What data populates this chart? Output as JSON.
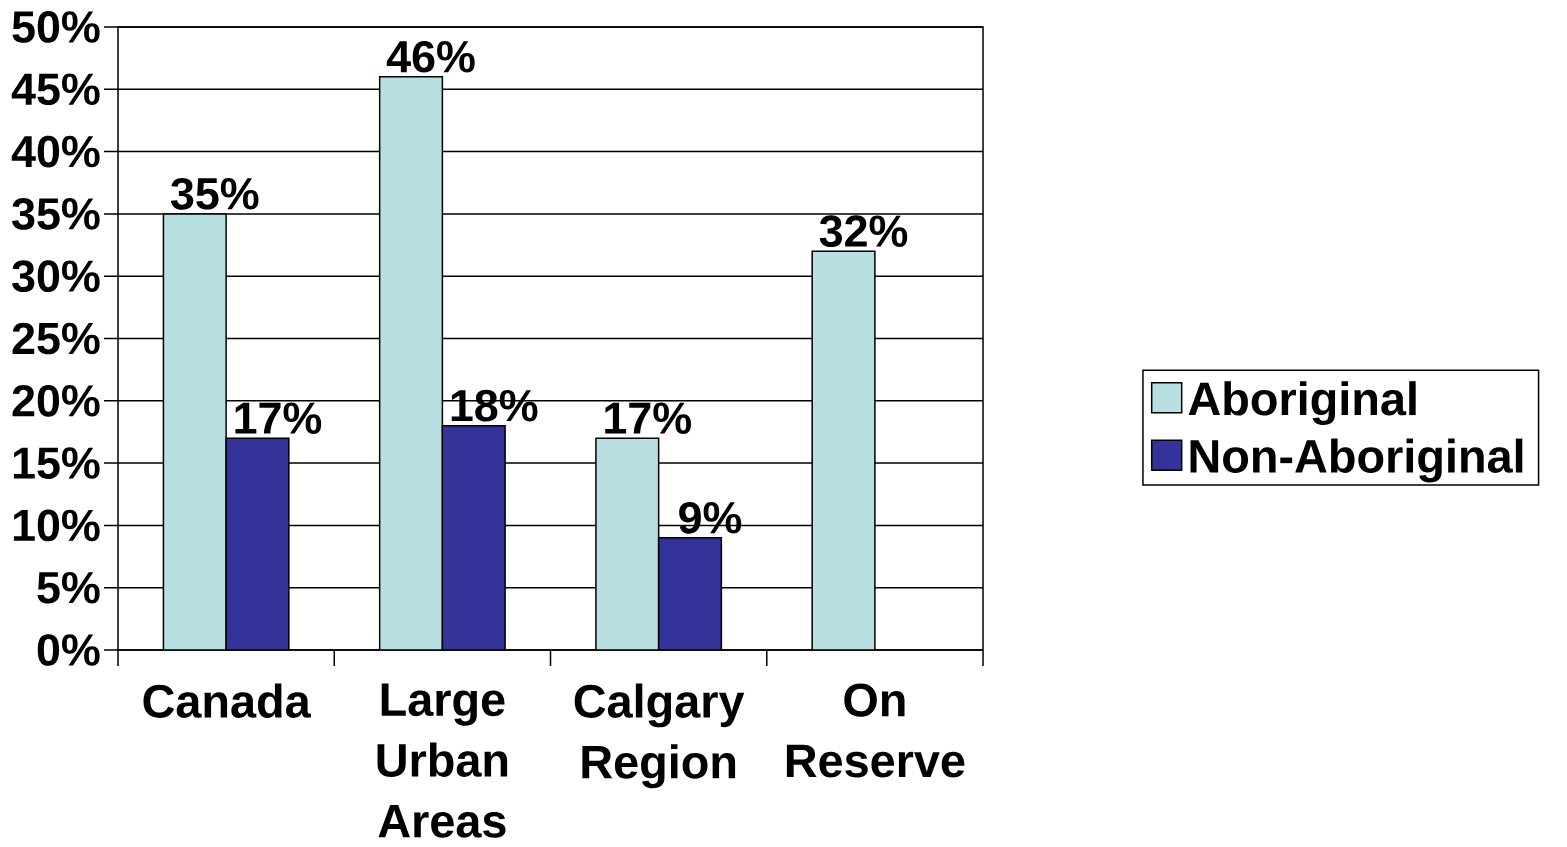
{
  "chart_data": {
    "type": "bar",
    "categories": [
      "Canada",
      "Large Urban Areas",
      "Calgary Region",
      "On Reserve"
    ],
    "series": [
      {
        "name": "Aboriginal",
        "color": "#b8e0e2",
        "values": [
          35,
          46,
          17,
          32
        ],
        "value_labels": [
          "35%",
          "46%",
          "17%",
          "32%"
        ]
      },
      {
        "name": "Non-Aboriginal",
        "color": "#333399",
        "values": [
          17,
          18,
          9,
          null
        ],
        "value_labels": [
          "17%",
          "18%",
          "9%",
          null
        ]
      }
    ],
    "ylim": [
      0,
      50
    ],
    "yticks": [
      {
        "value": 0,
        "label": "0%"
      },
      {
        "value": 5,
        "label": "5%"
      },
      {
        "value": 10,
        "label": "10%"
      },
      {
        "value": 15,
        "label": "15%"
      },
      {
        "value": 20,
        "label": "20%"
      },
      {
        "value": 25,
        "label": "25%"
      },
      {
        "value": 30,
        "label": "30%"
      },
      {
        "value": 35,
        "label": "35%"
      },
      {
        "value": 40,
        "label": "40%"
      },
      {
        "value": 45,
        "label": "45%"
      },
      {
        "value": 50,
        "label": "50%"
      }
    ],
    "grid": "y",
    "legend": "right"
  }
}
